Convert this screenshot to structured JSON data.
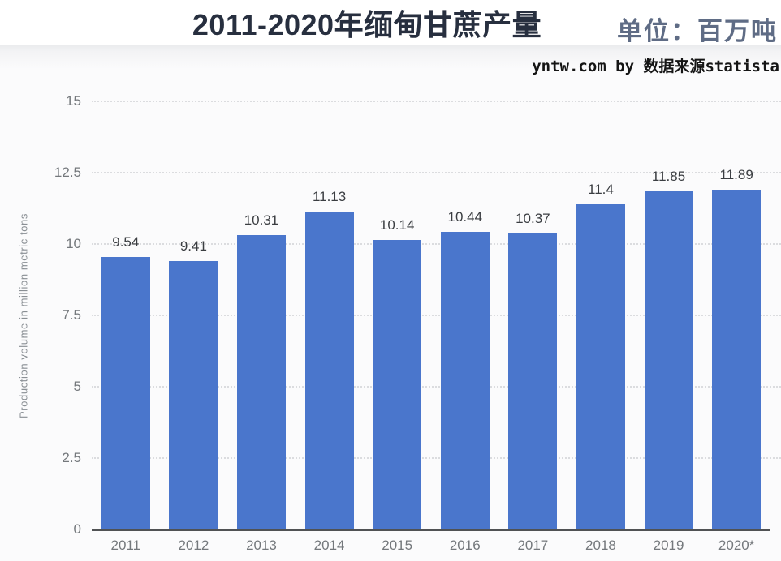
{
  "header": {
    "title": "2011-2020年缅甸甘蔗产量",
    "unit_label": "单位：百万吨",
    "attribution": "yntw.com by 数据来源statista"
  },
  "colors": {
    "bar": "#4a76cc",
    "title_text": "#272f3f",
    "unit_text": "#5f6c85",
    "attribution_text": "#151515",
    "grid_line": "#dbdcdf",
    "axis_line": "#505254",
    "axis_text": "#74787c",
    "value_label_text": "#3a3d41",
    "ylabel_text": "#8a8f94"
  },
  "chart_data": {
    "type": "bar",
    "title": "2011-2020年缅甸甘蔗产量",
    "unit_label": "单位：百万吨",
    "categories": [
      "2011",
      "2012",
      "2013",
      "2014",
      "2015",
      "2016",
      "2017",
      "2018",
      "2019",
      "2020*"
    ],
    "values": [
      9.54,
      9.41,
      10.31,
      11.13,
      10.14,
      10.44,
      10.37,
      11.4,
      11.85,
      11.89
    ],
    "value_labels": [
      "9.54",
      "9.41",
      "10.31",
      "11.13",
      "10.14",
      "10.44",
      "10.37",
      "11.4",
      "11.85",
      "11.89"
    ],
    "xlabel": "",
    "ylabel": "Production volume in million metric tons",
    "ylim": [
      0,
      15
    ],
    "yticks": [
      0,
      2.5,
      5,
      7.5,
      10,
      12.5,
      15
    ],
    "ytick_labels": [
      "0",
      "2.5",
      "5",
      "7.5",
      "10",
      "12.5",
      "15"
    ],
    "grid": true,
    "legend": false,
    "bar_color": "#4a76cc"
  }
}
